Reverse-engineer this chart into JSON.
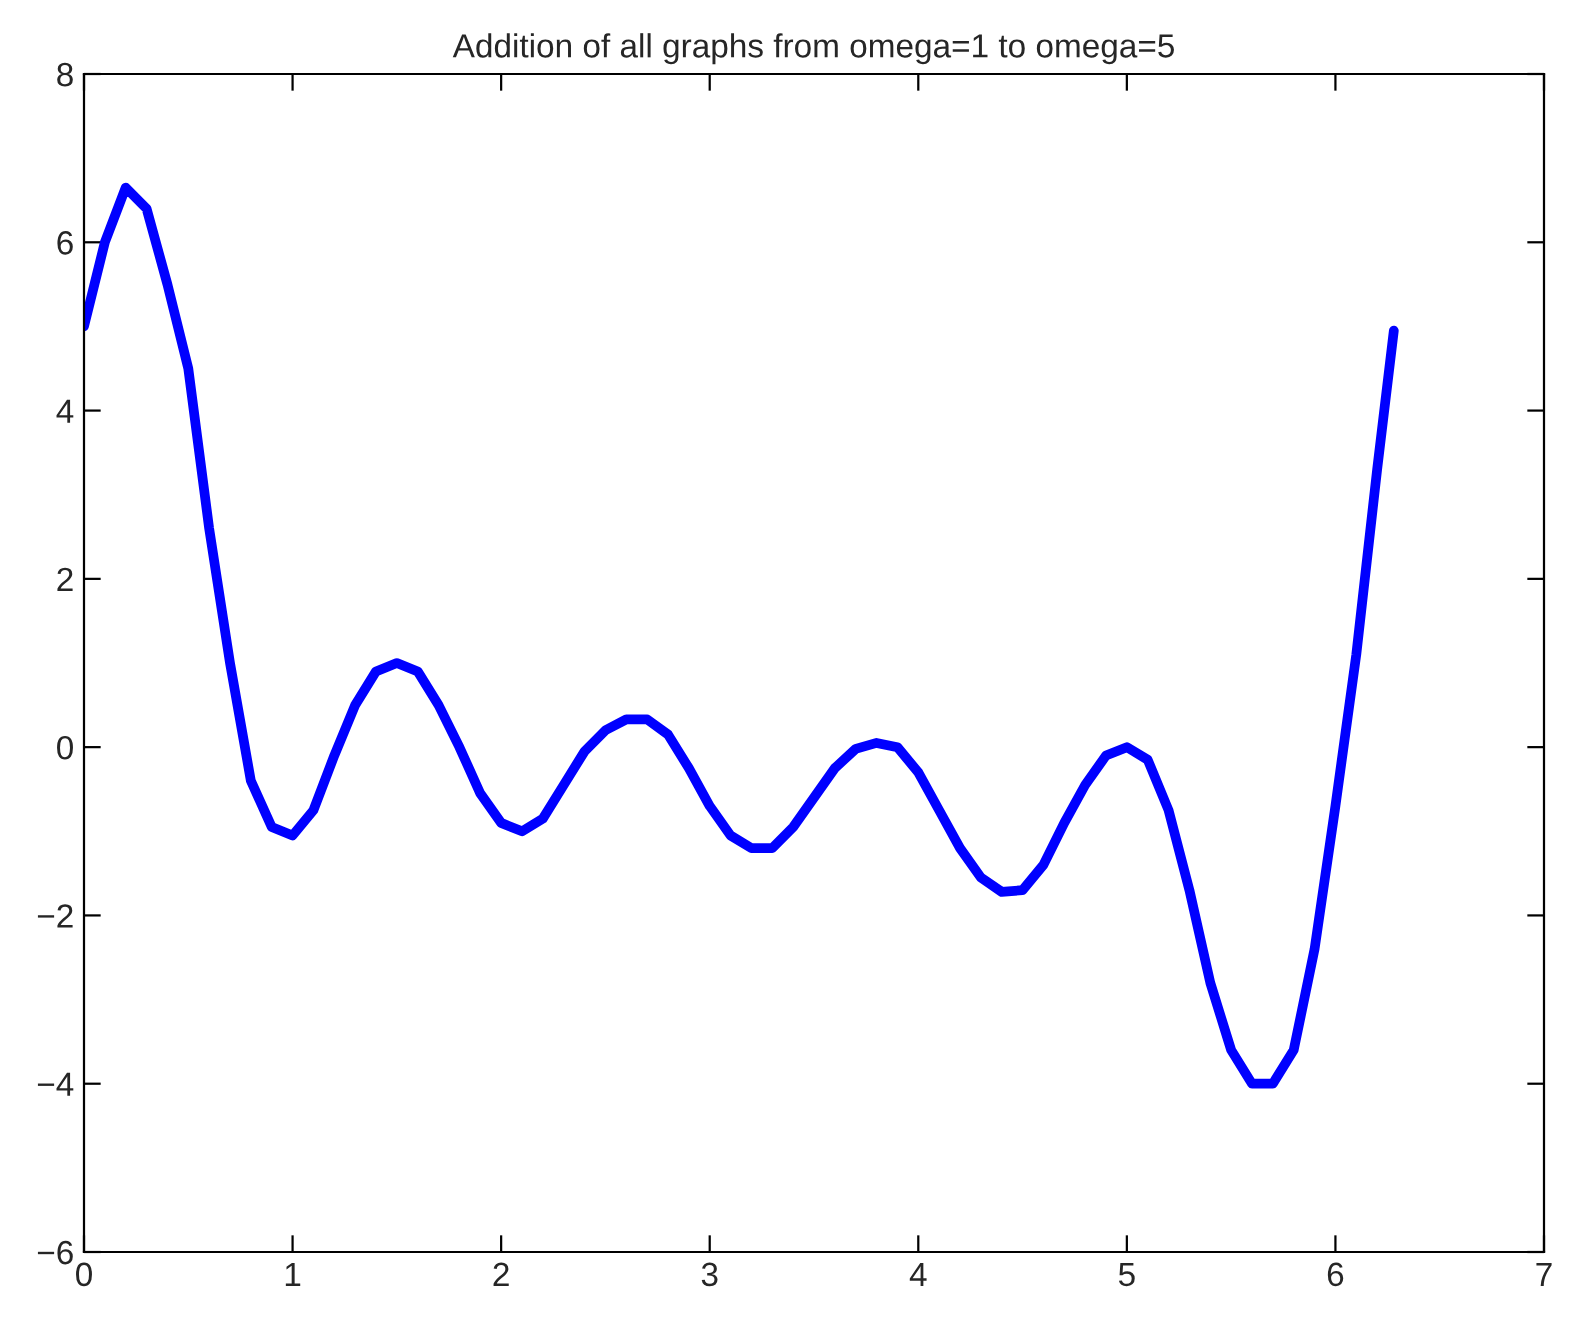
{
  "chart_data": {
    "type": "line",
    "title": "Addition of all graphs from omega=1 to omega=5",
    "x": [
      0,
      0.1,
      0.2,
      0.3,
      0.4,
      0.5,
      0.6,
      0.7,
      0.8,
      0.9,
      1.0,
      1.1,
      1.2,
      1.3,
      1.4,
      1.5,
      1.6,
      1.7,
      1.8,
      1.9,
      2.0,
      2.1,
      2.2,
      2.3,
      2.4,
      2.5,
      2.6,
      2.7,
      2.8,
      2.9,
      3.0,
      3.1,
      3.2,
      3.3,
      3.4,
      3.5,
      3.6,
      3.7,
      3.8,
      3.9,
      4.0,
      4.1,
      4.2,
      4.3,
      4.4,
      4.5,
      4.6,
      4.7,
      4.8,
      4.9,
      5.0,
      5.1,
      5.2,
      5.3,
      5.4,
      5.5,
      5.6,
      5.7,
      5.8,
      5.9,
      6.0,
      6.1,
      6.2,
      6.28
    ],
    "series": [
      {
        "color": "#0000ff",
        "values": [
          5.0,
          6.0,
          6.65,
          6.4,
          5.5,
          4.5,
          2.6,
          1.0,
          -0.4,
          -0.95,
          -1.05,
          -0.75,
          -0.1,
          0.5,
          0.9,
          1.0,
          0.9,
          0.5,
          0.0,
          -0.55,
          -0.9,
          -1.0,
          -0.85,
          -0.45,
          -0.05,
          0.2,
          0.33,
          0.33,
          0.15,
          -0.25,
          -0.7,
          -1.05,
          -1.2,
          -1.2,
          -0.95,
          -0.6,
          -0.25,
          -0.02,
          0.05,
          0.0,
          -0.3,
          -0.75,
          -1.2,
          -1.55,
          -1.72,
          -1.7,
          -1.4,
          -0.9,
          -0.45,
          -0.1,
          0.0,
          -0.15,
          -0.75,
          -1.7,
          -2.8,
          -3.6,
          -4.0,
          -4.0,
          -3.6,
          -2.4,
          -0.7,
          1.1,
          3.3,
          4.95
        ]
      }
    ],
    "xlim": [
      0,
      7
    ],
    "xticks": [
      0,
      1,
      2,
      3,
      4,
      5,
      6,
      7
    ],
    "ylim": [
      -6,
      8
    ],
    "yticks": [
      {
        "value": -6,
        "label": "−6"
      },
      {
        "value": -4,
        "label": "−4"
      },
      {
        "value": -2,
        "label": "−2"
      },
      0,
      2,
      4,
      6,
      8
    ],
    "grid": false,
    "legend": false,
    "marker": "none",
    "line_style": "solid"
  }
}
